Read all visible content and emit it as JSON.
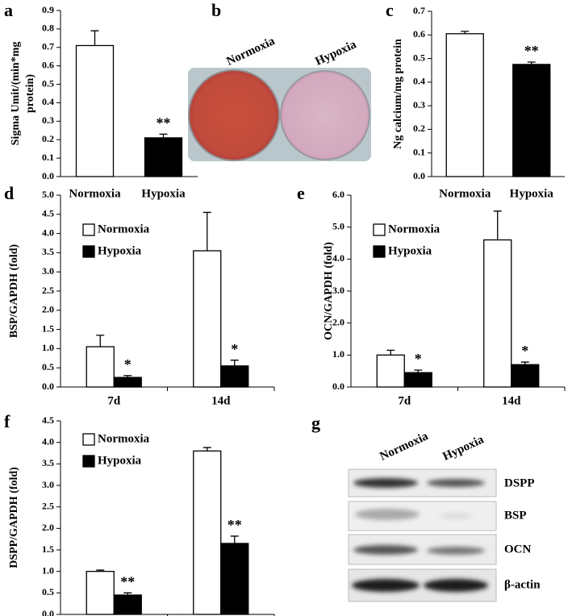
{
  "chart_data": [
    {
      "type": "bar",
      "label": "a",
      "ylabel": [
        "Sigma Umit/(min*mg",
        "protein)"
      ],
      "categories": [
        "Normoxia",
        "Hypoxia"
      ],
      "values": [
        0.71,
        0.21
      ],
      "errors": [
        0.08,
        0.02
      ],
      "annotations": [
        null,
        "**"
      ],
      "colors": [
        "#ffffff",
        "#000000"
      ],
      "ylim": [
        0,
        0.9
      ],
      "yticks": [
        {
          "value": 0,
          "label": "0.0"
        },
        0.1,
        0.2,
        0.3,
        0.4,
        0.5,
        0.6,
        0.7,
        0.8,
        0.9
      ]
    },
    {
      "type": "bar",
      "label": "c",
      "ylabel": [
        "Ng calcium/mg protein"
      ],
      "categories": [
        "Normoxia",
        "Hypoxia"
      ],
      "values": [
        0.605,
        0.475
      ],
      "errors": [
        0.01,
        0.01
      ],
      "annotations": [
        null,
        "**"
      ],
      "colors": [
        "#ffffff",
        "#000000"
      ],
      "ylim": [
        0,
        0.7
      ],
      "yticks": [
        {
          "value": 0,
          "label": "0.0"
        },
        0.1,
        0.2,
        0.3,
        0.4,
        0.5,
        0.6,
        0.7
      ]
    },
    {
      "type": "bar",
      "label": "d",
      "ylabel": [
        "BSP/GAPDH (fold)"
      ],
      "legend": "upper left",
      "categories": [
        "7d",
        "14d"
      ],
      "series": [
        {
          "name": "Normoxia",
          "color": "#ffffff",
          "values": [
            1.05,
            3.55
          ],
          "errors": [
            0.3,
            1.0
          ]
        },
        {
          "name": "Hypoxia",
          "color": "#000000",
          "values": [
            0.25,
            0.55
          ],
          "errors": [
            0.05,
            0.15
          ],
          "annotations": [
            "*",
            "*"
          ]
        }
      ],
      "ylim": [
        0,
        5
      ],
      "yticks": [
        {
          "value": 0,
          "label": "0.0"
        },
        0.5,
        {
          "value": 1,
          "label": "1.0"
        },
        1.5,
        {
          "value": 2,
          "label": "2.0"
        },
        2.5,
        {
          "value": 3,
          "label": "3.0"
        },
        3.5,
        {
          "value": 4,
          "label": "4.0"
        },
        4.5,
        {
          "value": 5,
          "label": "5.0"
        }
      ]
    },
    {
      "type": "bar",
      "label": "e",
      "ylabel": [
        "OCN/GAPDH (fold)"
      ],
      "legend": "upper left",
      "categories": [
        "7d",
        "14d"
      ],
      "series": [
        {
          "name": "Normoxia",
          "color": "#ffffff",
          "values": [
            1.0,
            4.6
          ],
          "errors": [
            0.15,
            0.9
          ]
        },
        {
          "name": "Hypoxia",
          "color": "#000000",
          "values": [
            0.45,
            0.7
          ],
          "errors": [
            0.08,
            0.08
          ],
          "annotations": [
            "*",
            "*"
          ]
        }
      ],
      "ylim": [
        0,
        6
      ],
      "yticks": [
        {
          "value": 0,
          "label": "0.0"
        },
        {
          "value": 1,
          "label": "1.0"
        },
        {
          "value": 2,
          "label": "2.0"
        },
        {
          "value": 3,
          "label": "3.0"
        },
        {
          "value": 4,
          "label": "4.0"
        },
        {
          "value": 5,
          "label": "5.0"
        },
        {
          "value": 6,
          "label": "6.0"
        }
      ]
    },
    {
      "type": "bar",
      "label": "f",
      "ylabel": [
        "DSPP/GAPDH (fold)"
      ],
      "legend": "upper left",
      "categories": [
        "7d",
        "14d"
      ],
      "series": [
        {
          "name": "Normoxia",
          "color": "#ffffff",
          "values": [
            1.0,
            3.8
          ],
          "errors": [
            0.03,
            0.08
          ]
        },
        {
          "name": "Hypoxia",
          "color": "#000000",
          "values": [
            0.45,
            1.65
          ],
          "errors": [
            0.05,
            0.17
          ],
          "annotations": [
            "**",
            "**"
          ]
        }
      ],
      "ylim": [
        0,
        4.5
      ],
      "yticks": [
        {
          "value": 0,
          "label": "0.0"
        },
        0.5,
        {
          "value": 1,
          "label": "1.0"
        },
        1.5,
        {
          "value": 2,
          "label": "2.0"
        },
        2.5,
        {
          "value": 3,
          "label": "3.0"
        },
        3.5,
        {
          "value": 4,
          "label": "4.0"
        },
        4.5
      ]
    }
  ],
  "panel_b": {
    "label": "b",
    "columns": [
      "Normoxia",
      "Hypoxia"
    ]
  },
  "panel_g": {
    "label": "g",
    "columns": [
      "Normoxia",
      "Hypoxia"
    ],
    "rows": [
      "DSPP",
      "BSP",
      "OCN",
      "β-actin"
    ]
  }
}
